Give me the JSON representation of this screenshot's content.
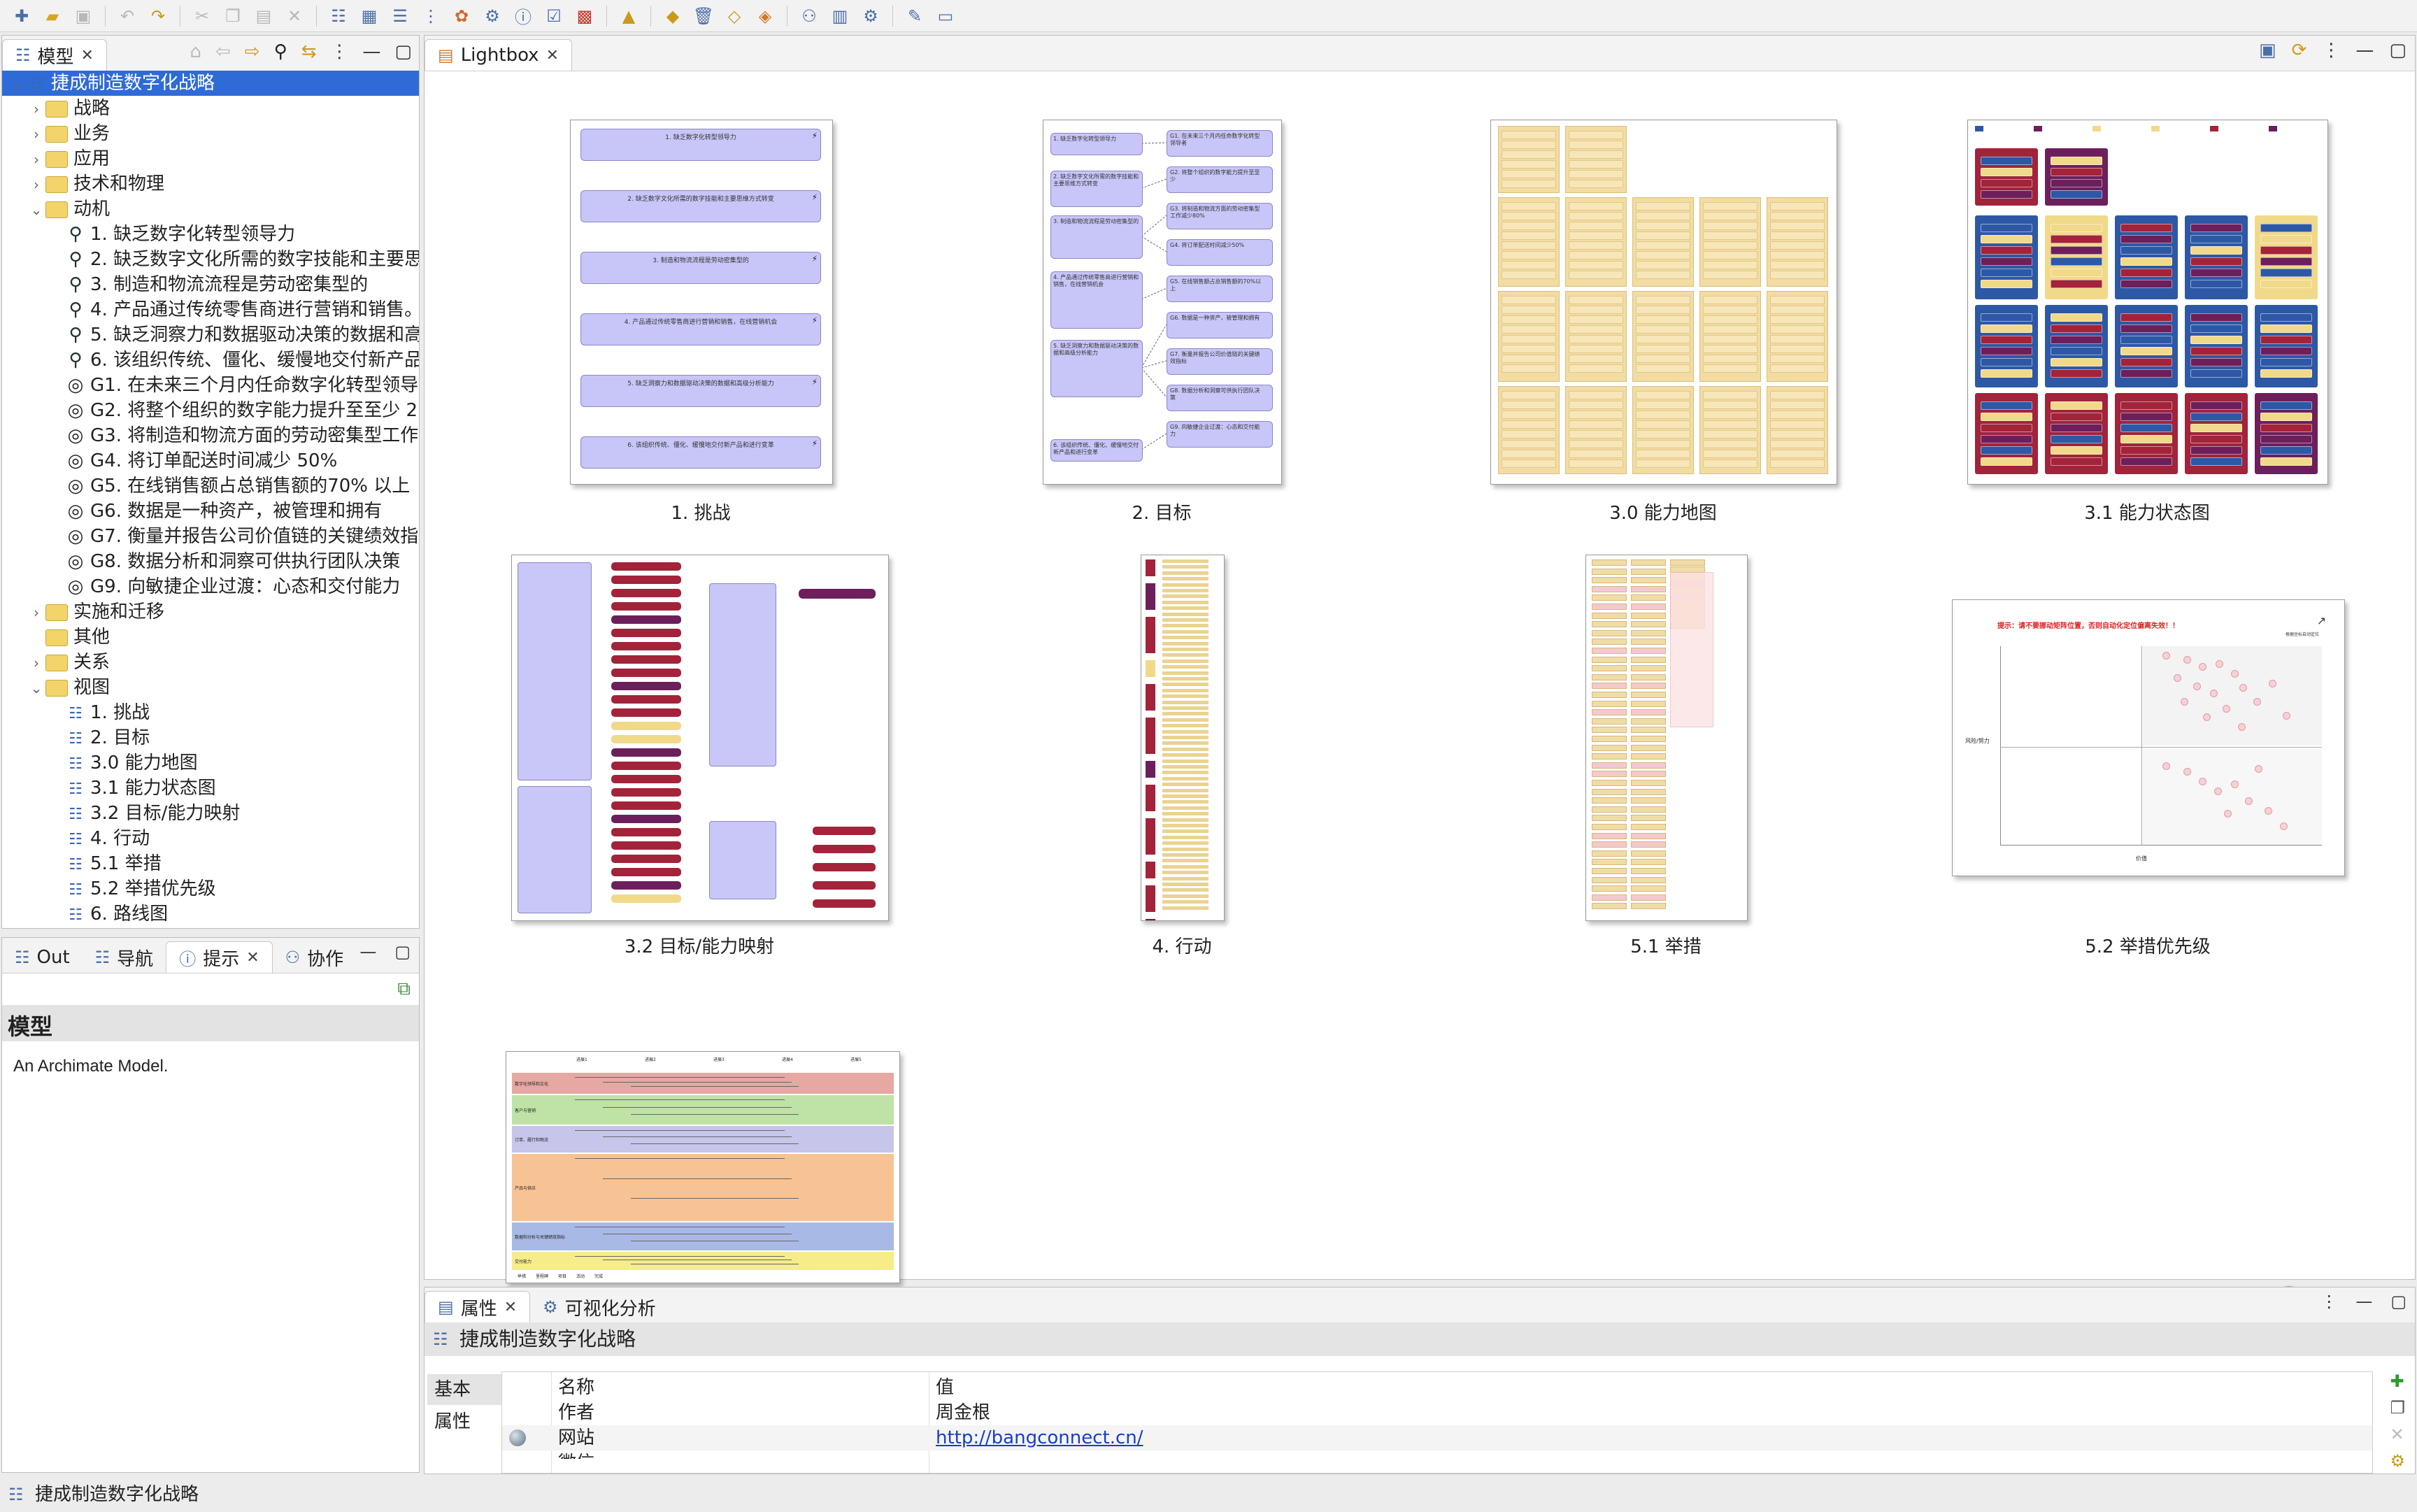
{
  "tabs": {
    "model": "模型",
    "lightbox": "Lightbox",
    "outline": "Out",
    "navigator": "导航",
    "hints": "提示",
    "collab": "协作",
    "properties": "属性",
    "visual_analysis": "可视化分析"
  },
  "tree": {
    "root": "捷成制造数字化战略",
    "folders_top": [
      "战略",
      "业务",
      "应用",
      "技术和物理"
    ],
    "motivation": "动机",
    "drivers": [
      "1. 缺乏数字化转型领导力",
      "2. 缺乏数字文化所需的数字技能和主要思",
      "3. 制造和物流流程是劳动密集型的",
      "4. 产品通过传统零售商进行营销和销售。",
      "5. 缺乏洞察力和数据驱动决策的数据和高",
      "6. 该组织传统、僵化、缓慢地交付新产品"
    ],
    "goals": [
      "G1. 在未来三个月内任命数字化转型领导",
      "G2. 将整个组织的数字能力提升至至少 2",
      "G3. 将制造和物流方面的劳动密集型工作",
      "G4. 将订单配送时间减少 50%",
      "G5. 在线销售额占总销售额的70% 以上",
      "G6. 数据是一种资产，被管理和拥有",
      "G7. 衡量并报告公司价值链的关键绩效指",
      "G8. 数据分析和洞察可供执行团队决策",
      "G9. 向敏捷企业过渡：心态和交付能力"
    ],
    "folders_mid": [
      "实施和迁移",
      "其他",
      "关系"
    ],
    "views_folder": "视图",
    "views": [
      "1. 挑战",
      "2. 目标",
      "3.0 能力地图",
      "3.1 能力状态图",
      "3.2 目标/能力映射",
      "4. 行动",
      "5.1 举措",
      "5.2 举措优先级",
      "6. 路线图"
    ]
  },
  "hint": {
    "title": "模型",
    "text": "An Archimate Model."
  },
  "lightbox": {
    "labels": [
      "1. 挑战",
      "2. 目标",
      "3.0 能力地图",
      "3.1 能力状态图",
      "3.2 目标/能力映射",
      "4. 行动",
      "5.1 举措",
      "5.2 举措优先级"
    ],
    "challenges": [
      "1. 缺乏数字化转型领导力",
      "2. 缺乏数字文化所需的数字技能和主要思维方式转变",
      "3. 制造和物流流程是劳动密集型的",
      "4. 产品通过传统零售商进行营销和销售，在线营销机会",
      "5. 缺乏洞察力和数据驱动决策的数据和高级分析能力",
      "6. 该组织传统、僵化、缓慢地交付新产品和进行变革"
    ],
    "goal_left": [
      "1. 缺乏数字化转型领导力",
      "2. 缺乏数字文化所需的数字技能和主要思维方式转变",
      "3. 制造和物流流程是劳动密集型的",
      "4. 产品通过传统零售商进行营销和销售，在线营销机会",
      "5. 缺乏洞察力和数据驱动决策的数据和高级分析能力",
      "6. 该组织传统、僵化、缓慢地交付新产品和进行变革"
    ],
    "goal_right": [
      "G1. 在未来三个月内任命数字化转型领导者",
      "G2. 将整个组织的数字能力提升至至少",
      "G3. 将制造和物流方面的劳动密集型工作减少80%",
      "G4. 将订单配送时间减少50%",
      "G5. 在线销售额占总销售额的70%以上",
      "G6. 数据是一种资产，被管理和拥有",
      "G7. 衡量并报告公司价值链的关键绩效指标",
      "G8. 数据分析和洞察可供执行团队决策",
      "G9. 向敏捷企业过渡：心态和交付能力"
    ],
    "priority_warning": "提示：请不要挪动矩阵位置，否则自动化定位偏离失效！！",
    "priority_y_axis": "风险/努力",
    "priority_x_axis": "价值",
    "priority_note": "根据坐标自动定位",
    "roadmap_lanes": [
      "数字化领导和文化",
      "客户与营销",
      "订单、履行和物流",
      "产品与供应",
      "数据和分析与关键绩效指标",
      "交付能力"
    ],
    "roadmap_quarters": [
      "进展1",
      "进展2",
      "进展3",
      "进展4",
      "进展5"
    ],
    "roadmap_legend": [
      "举措",
      "里程碑",
      "项目",
      "活动",
      "完成"
    ],
    "zoom_fraction": 0.5,
    "colors": {
      "purple": "#c9c7f7",
      "red": "#a2233a",
      "yellow": "#f1d98a",
      "blue": "#2d58a6",
      "plum": "#6d1f5c"
    }
  },
  "properties": {
    "title": "捷成制造数字化战略",
    "side_tabs": [
      "基本",
      "属性"
    ],
    "col_name": "名称",
    "col_value": "值",
    "rows": [
      {
        "name": "作者",
        "value": "周金根"
      },
      {
        "name": "网站",
        "value": "http://bangconnect.cn/"
      },
      {
        "name": "微信",
        "value": ""
      }
    ]
  },
  "status": "捷成制造数字化战略"
}
